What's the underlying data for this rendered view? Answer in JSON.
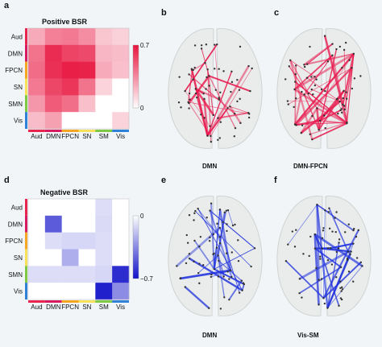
{
  "panel_letters": [
    "a",
    "b",
    "c",
    "d",
    "e",
    "f"
  ],
  "chart_data": [
    {
      "type": "heatmap",
      "title": "Positive BSR",
      "rows": [
        "Aud",
        "DMN",
        "FPCN",
        "SN",
        "SMN",
        "Vis"
      ],
      "columns": [
        "Aud",
        "DMN",
        "FPCN",
        "SN",
        "SM",
        "Vis"
      ],
      "values": [
        [
          0.25,
          0.38,
          0.4,
          0.34,
          0.17,
          0.14
        ],
        [
          0.42,
          0.63,
          0.56,
          0.54,
          0.22,
          0.2
        ],
        [
          0.44,
          0.62,
          0.67,
          0.66,
          0.25,
          0.19
        ],
        [
          0.4,
          0.55,
          0.6,
          0.42,
          0.13,
          0.0
        ],
        [
          0.31,
          0.49,
          0.43,
          0.19,
          0.0,
          0.0
        ],
        [
          0.2,
          0.28,
          0.0,
          0.0,
          0.0,
          0.13
        ]
      ],
      "colorbar": {
        "min_label": "0",
        "max_label": "0.7",
        "min": 0,
        "max": 0.7,
        "low_color": "#ffffff",
        "high_color": "#e8153f"
      },
      "group_colors": [
        "#e8244f",
        "#d81b60",
        "#f5a623",
        "#f7e05a",
        "#7ec843",
        "#2f82d8"
      ]
    },
    {
      "type": "heatmap",
      "title": "Negative BSR",
      "rows": [
        "Aud",
        "DMN",
        "FPCN",
        "SN",
        "SMN",
        "Vis"
      ],
      "columns": [
        "Aud",
        "DMN",
        "FPCN",
        "SN",
        "SM",
        "Vis"
      ],
      "values": [
        [
          0.0,
          0.0,
          0.0,
          0.0,
          -0.1,
          0.0
        ],
        [
          0.0,
          -0.48,
          0.0,
          0.0,
          -0.11,
          0.0
        ],
        [
          0.0,
          -0.1,
          -0.12,
          -0.12,
          -0.1,
          0.0
        ],
        [
          0.0,
          0.0,
          -0.24,
          0.0,
          -0.1,
          0.0
        ],
        [
          -0.1,
          -0.1,
          -0.1,
          -0.1,
          -0.12,
          -0.62
        ],
        [
          0.0,
          0.0,
          0.0,
          0.0,
          -0.66,
          -0.34
        ]
      ],
      "colorbar": {
        "min_label": "−0.7",
        "max_label": "0",
        "min": -0.7,
        "max": 0,
        "low_color": "#1212c9",
        "high_color": "#ffffff"
      },
      "group_colors": [
        "#e8244f",
        "#d81b60",
        "#f5a623",
        "#f7e05a",
        "#7ec843",
        "#2f82d8"
      ]
    }
  ],
  "brains": [
    {
      "letter": "b",
      "caption": "DMN",
      "color": "#e8194f",
      "density": 28
    },
    {
      "letter": "c",
      "caption": "DMN-FPCN",
      "color": "#e8194f",
      "density": 46
    },
    {
      "letter": "e",
      "caption": "DMN",
      "color": "#2233dd",
      "density": 30
    },
    {
      "letter": "f",
      "caption": "Vis-SM",
      "color": "#2233dd",
      "density": 26
    }
  ]
}
